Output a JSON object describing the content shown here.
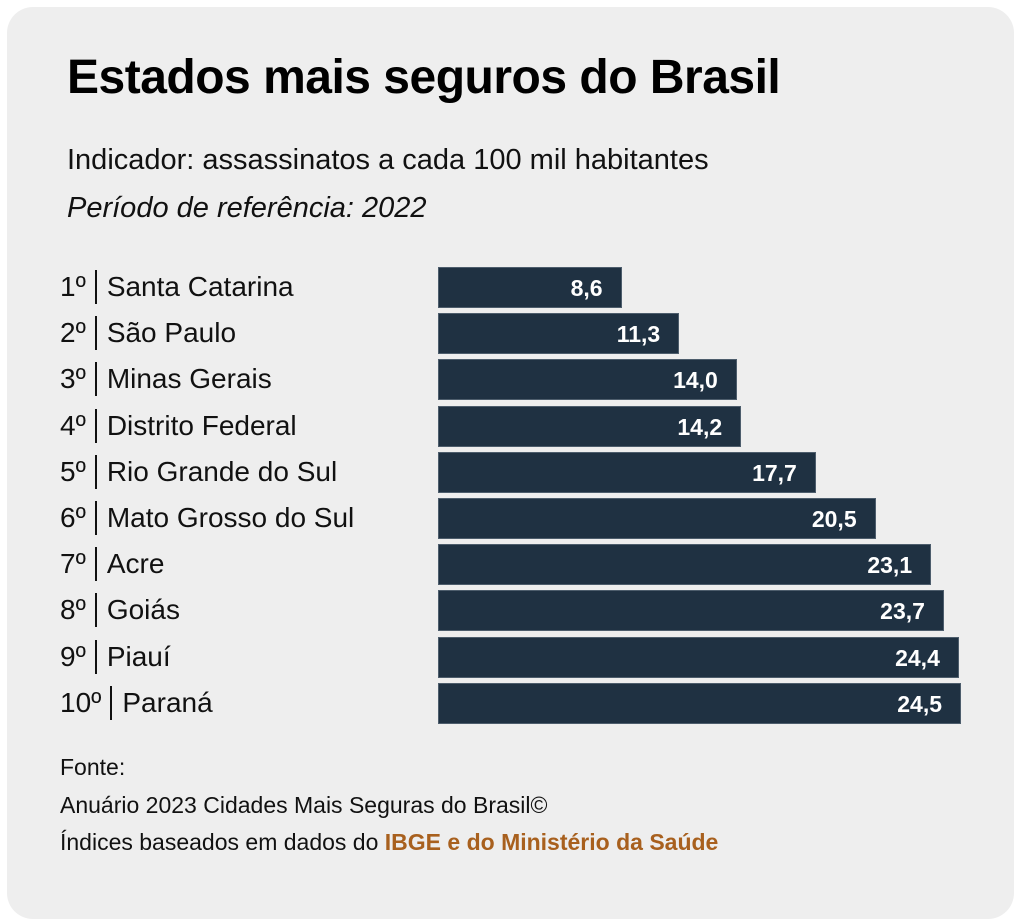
{
  "header": {
    "title": "Estados mais seguros do Brasil",
    "subtitle": "Indicador: assassinatos a cada 100 mil habitantes",
    "period": "Período de referência: 2022"
  },
  "colors": {
    "background": "#eeeeee",
    "bar": "#1f3142",
    "bar_text": "#ffffff",
    "accent": "#a8601e"
  },
  "chart_data": {
    "type": "bar",
    "orientation": "horizontal",
    "title": "Estados mais seguros do Brasil",
    "subtitle": "Indicador: assassinatos a cada 100 mil habitantes",
    "xlabel": "",
    "ylabel": "",
    "categories": [
      "Santa Catarina",
      "São Paulo",
      "Minas Gerais",
      "Distrito Federal",
      "Rio Grande do Sul",
      "Mato Grosso do Sul",
      "Acre",
      "Goiás",
      "Piauí",
      "Paraná"
    ],
    "ranks": [
      "1º",
      "2º",
      "3º",
      "4º",
      "5º",
      "6º",
      "7º",
      "8º",
      "9º",
      "10º"
    ],
    "values": [
      8.6,
      11.3,
      14.0,
      14.2,
      17.7,
      20.5,
      23.1,
      23.7,
      24.4,
      24.5
    ],
    "value_labels": [
      "8,6",
      "11,3",
      "14,0",
      "14,2",
      "17,7",
      "20,5",
      "23,1",
      "23,7",
      "24,4",
      "24,5"
    ],
    "xlim": [
      0,
      24.5
    ],
    "grid": false,
    "legend": "none"
  },
  "source": {
    "label": "Fonte:",
    "line1": "Anuário 2023 Cidades Mais Seguras do Brasil©",
    "line2_prefix": "Índices baseados em dados do ",
    "line2_highlight": "IBGE e do Ministério da Saúde"
  }
}
